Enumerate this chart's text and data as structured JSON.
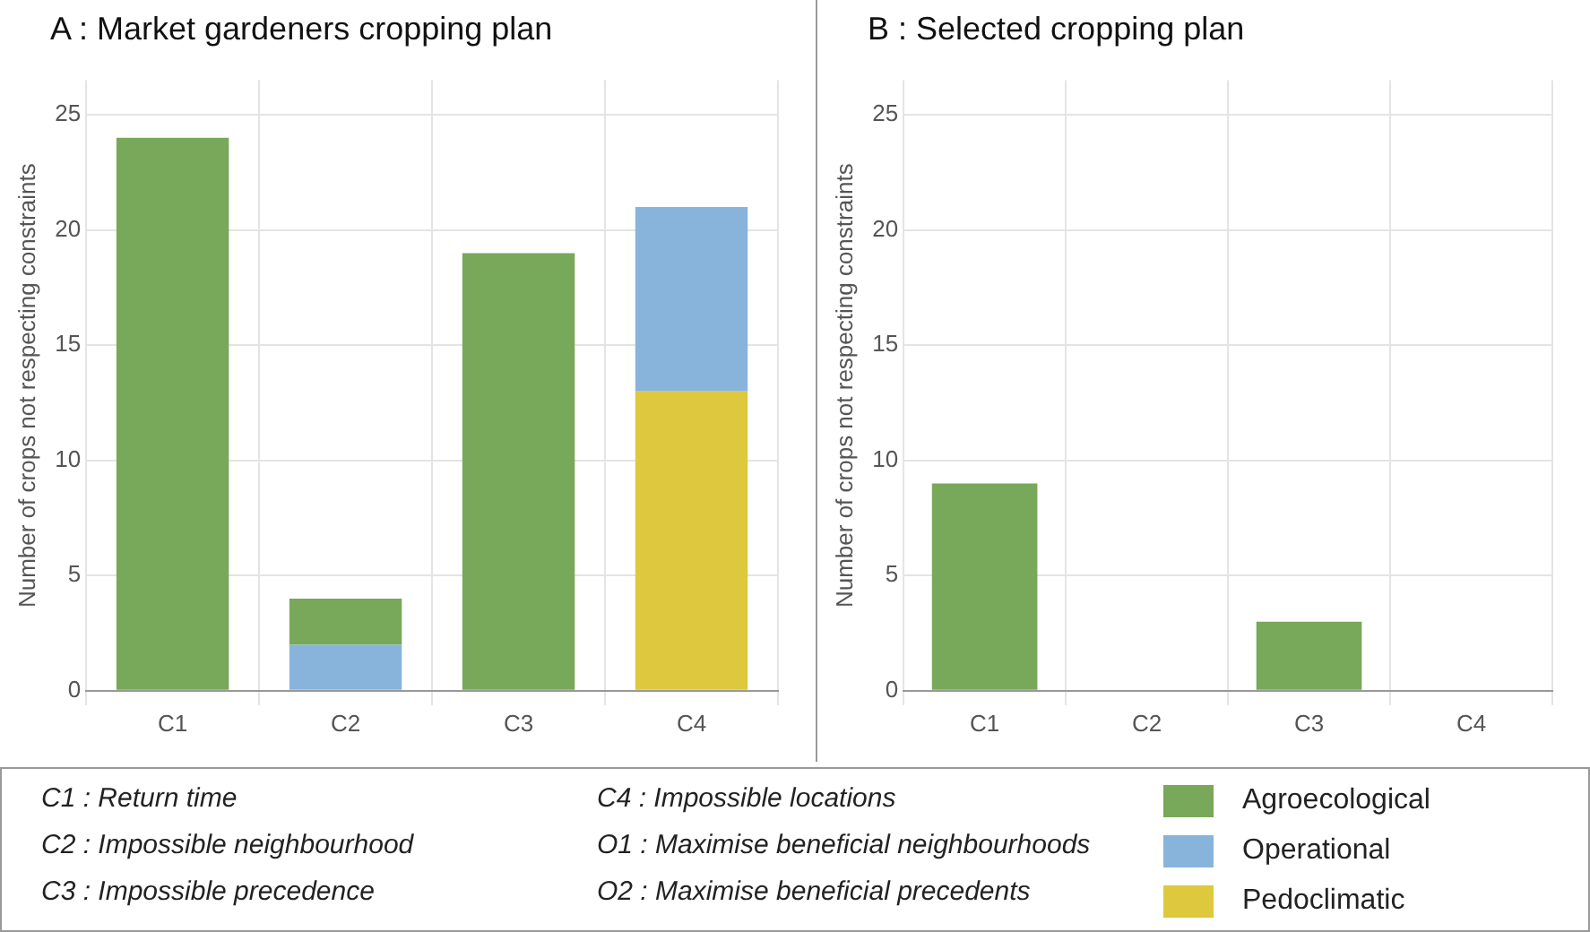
{
  "chart_data": [
    {
      "type": "bar",
      "title": "A : Market gardeners cropping plan",
      "ylabel": "Number of crops not respecting constraints",
      "categories": [
        "C1",
        "C2",
        "C3",
        "C4"
      ],
      "stacked": true,
      "ylim": [
        0,
        26.5
      ],
      "yticks": [
        0,
        5,
        10,
        15,
        20,
        25
      ],
      "grid": true,
      "legend": "bottom right",
      "series": [
        {
          "name": "Pedoclimatic",
          "color": "#dec83e",
          "values": [
            0,
            0,
            0,
            13
          ]
        },
        {
          "name": "Operational",
          "color": "#88b4dc",
          "values": [
            0,
            2,
            0,
            8
          ]
        },
        {
          "name": "Agroecological",
          "color": "#78a85a",
          "values": [
            24,
            2,
            19,
            0
          ]
        }
      ],
      "annotations": [
        "C1 : Return time",
        "C2 : Impossible neighbourhood",
        "C3 : Impossible precedence",
        "C4 : Impossible locations",
        "O1 : Maximise beneficial neighbourhoods",
        "O2 : Maximise beneficial precedents"
      ]
    },
    {
      "type": "bar",
      "title": "B : Selected cropping plan",
      "ylabel": "Number of crops not respecting constraints",
      "categories": [
        "C1",
        "C2",
        "C3",
        "C4"
      ],
      "stacked": true,
      "ylim": [
        0,
        26.5
      ],
      "yticks": [
        0,
        5,
        10,
        15,
        20,
        25
      ],
      "grid": true,
      "series": [
        {
          "color": "#78a85a",
          "values": [
            9,
            0,
            3,
            0
          ]
        }
      ]
    }
  ]
}
